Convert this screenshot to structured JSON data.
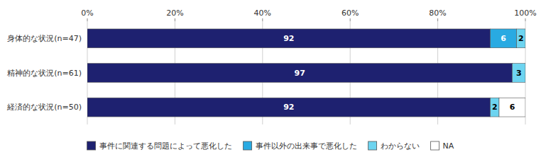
{
  "chart_data": {
    "type": "bar",
    "orientation": "horizontal",
    "stacked": true,
    "data_labels": true,
    "grid": true,
    "legend": "bottom",
    "categories": [
      "経済的な状況(n=50)",
      "精神的な状況(n=61)",
      "身体的な状況(n=47)"
    ],
    "series": [
      {
        "name": "事件に関連する問題によって悪化した",
        "color": "#1e2170",
        "values": [
          92,
          97,
          92
        ]
      },
      {
        "name": "事件以外の出来事で悪化した",
        "color": "#29aae2",
        "values": [
          0,
          0,
          6
        ]
      },
      {
        "name": "わからない",
        "color": "#6dd4f0",
        "values": [
          2,
          3,
          2
        ]
      },
      {
        "name": "NA",
        "color": "#ffffff",
        "values": [
          6,
          0,
          0
        ]
      }
    ],
    "xlim": [
      0,
      100
    ],
    "xticks": [
      {
        "value": 0,
        "label": "0%"
      },
      {
        "value": 20,
        "label": "20%"
      },
      {
        "value": 40,
        "label": "40%"
      },
      {
        "value": 60,
        "label": "60%"
      },
      {
        "value": 80,
        "label": "80%"
      },
      {
        "value": 100,
        "label": "100%"
      }
    ]
  }
}
